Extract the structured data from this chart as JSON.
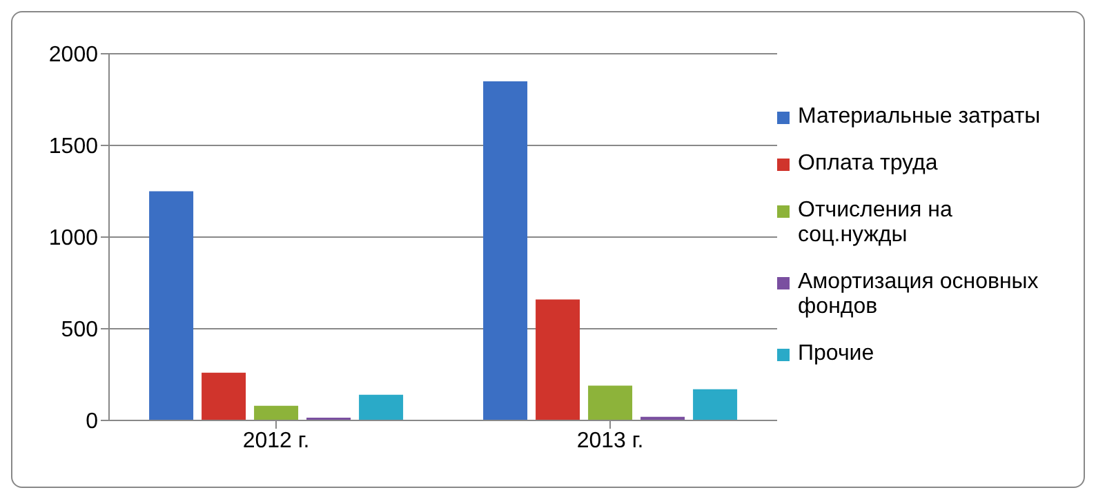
{
  "chart_data": {
    "type": "bar",
    "categories": [
      "2012 г.",
      "2013 г."
    ],
    "series": [
      {
        "name": "Материальные затраты",
        "color": "#3b6fc4",
        "values": [
          1250,
          1850
        ]
      },
      {
        "name": "Оплата труда",
        "color": "#d0342c",
        "values": [
          260,
          660
        ]
      },
      {
        "name": "Отчисления на соц.нужды",
        "color": "#8db33a",
        "values": [
          80,
          190
        ]
      },
      {
        "name": "Амортизация основных фондов",
        "color": "#7a4fa0",
        "values": [
          15,
          20
        ]
      },
      {
        "name": "Прочие",
        "color": "#2aaac8",
        "values": [
          140,
          170
        ]
      }
    ],
    "ylim": [
      0,
      2000
    ],
    "yticks": [
      0,
      500,
      1000,
      1500,
      2000
    ],
    "grid": "y",
    "legend": "right"
  }
}
